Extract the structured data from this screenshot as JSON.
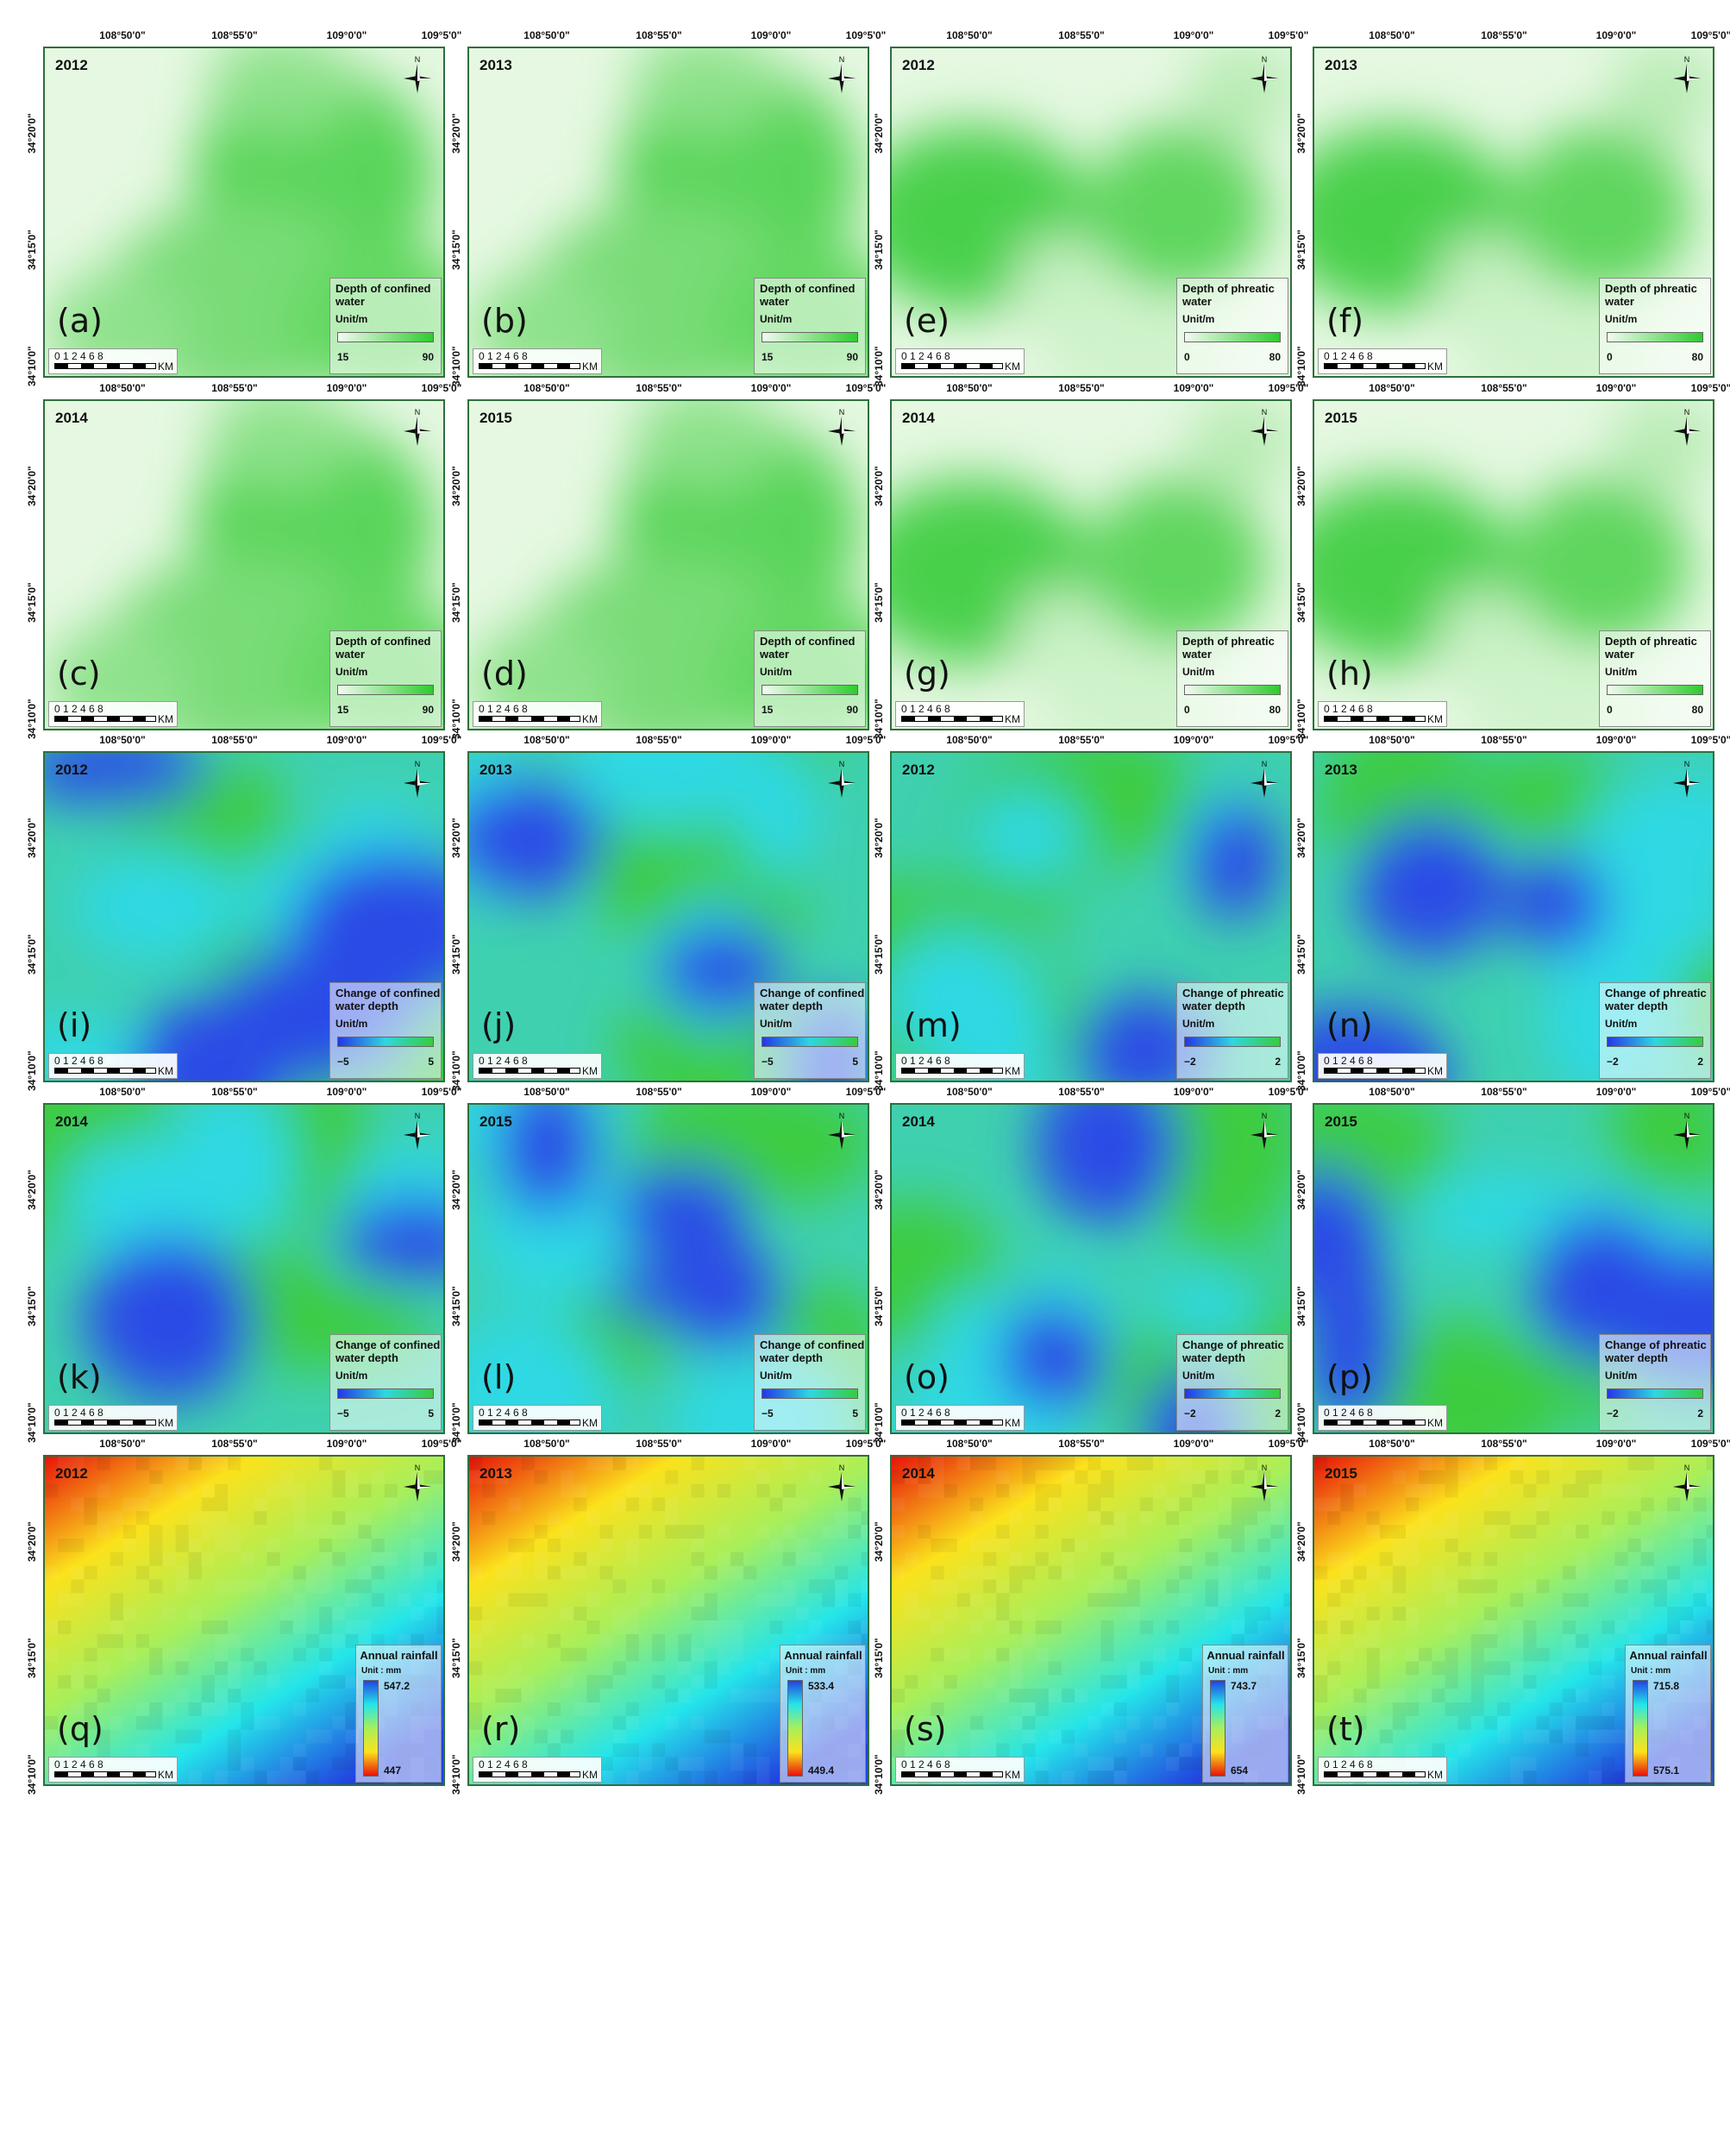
{
  "x_ticks": [
    "108°50'0\"",
    "108°55'0\"",
    "109°0'0\"",
    "109°5'0\""
  ],
  "y_ticks": [
    "34°20'0\"",
    "34°15'0\"",
    "34°10'0\""
  ],
  "scale": {
    "numbers": "0 1 2   4    6    8",
    "unit": "KM"
  },
  "north_label": "N",
  "colors": {
    "confined_ramp": [
      "#f2fbf0",
      "#2ecb2e"
    ],
    "change_ramp": [
      "#2437e6",
      "#30d6e0",
      "#38cc3e"
    ],
    "rainfall_ramp": [
      "#e8130a",
      "#fbe21c",
      "#a8ef5a",
      "#24e5ea",
      "#2144e0"
    ]
  },
  "panels": [
    {
      "label": "(a)",
      "year": "2012",
      "kind": "confined",
      "legend": {
        "title": "Depth of confined water",
        "unit": "Unit/m",
        "min": "15",
        "max": "90"
      }
    },
    {
      "label": "(b)",
      "year": "2013",
      "kind": "confined",
      "legend": {
        "title": "Depth of confined water",
        "unit": "Unit/m",
        "min": "15",
        "max": "90"
      }
    },
    {
      "label": "(e)",
      "year": "2012",
      "kind": "phreatic",
      "legend": {
        "title": "Depth of phreatic water",
        "unit": "Unit/m",
        "min": "0",
        "max": "80"
      }
    },
    {
      "label": "(f)",
      "year": "2013",
      "kind": "phreatic",
      "legend": {
        "title": "Depth of phreatic water",
        "unit": "Unit/m",
        "min": "0",
        "max": "80"
      }
    },
    {
      "label": "(c)",
      "year": "2014",
      "kind": "confined",
      "legend": {
        "title": "Depth of confined water",
        "unit": "Unit/m",
        "min": "15",
        "max": "90"
      }
    },
    {
      "label": "(d)",
      "year": "2015",
      "kind": "confined",
      "legend": {
        "title": "Depth of confined water",
        "unit": "Unit/m",
        "min": "15",
        "max": "90"
      }
    },
    {
      "label": "(g)",
      "year": "2014",
      "kind": "phreatic",
      "legend": {
        "title": "Depth of phreatic water",
        "unit": "Unit/m",
        "min": "0",
        "max": "80"
      }
    },
    {
      "label": "(h)",
      "year": "2015",
      "kind": "phreatic",
      "legend": {
        "title": "Depth of phreatic water",
        "unit": "Unit/m",
        "min": "0",
        "max": "80"
      }
    },
    {
      "label": "(i)",
      "year": "2012",
      "kind": "change",
      "legend": {
        "title": "Change of confined water depth",
        "unit": "Unit/m",
        "min": "−5",
        "max": "5"
      }
    },
    {
      "label": "(j)",
      "year": "2013",
      "kind": "change",
      "legend": {
        "title": "Change of confined water depth",
        "unit": "Unit/m",
        "min": "−5",
        "max": "5"
      }
    },
    {
      "label": "(m)",
      "year": "2012",
      "kind": "change",
      "legend": {
        "title": "Change of phreatic water depth",
        "unit": "Unit/m",
        "min": "−2",
        "max": "2"
      }
    },
    {
      "label": "(n)",
      "year": "2013",
      "kind": "change",
      "legend": {
        "title": "Change of phreatic water depth",
        "unit": "Unit/m",
        "min": "−2",
        "max": "2"
      }
    },
    {
      "label": "(k)",
      "year": "2014",
      "kind": "change",
      "legend": {
        "title": "Change of confined water depth",
        "unit": "Unit/m",
        "min": "−5",
        "max": "5"
      }
    },
    {
      "label": "(l)",
      "year": "2015",
      "kind": "change",
      "legend": {
        "title": "Change of confined water depth",
        "unit": "Unit/m",
        "min": "−5",
        "max": "5"
      }
    },
    {
      "label": "(o)",
      "year": "2014",
      "kind": "change",
      "legend": {
        "title": "Change of phreatic water depth",
        "unit": "Unit/m",
        "min": "−2",
        "max": "2"
      }
    },
    {
      "label": "(p)",
      "year": "2015",
      "kind": "change",
      "legend": {
        "title": "Change of phreatic water depth",
        "unit": "Unit/m",
        "min": "−2",
        "max": "2"
      }
    },
    {
      "label": "(q)",
      "year": "2012",
      "kind": "rainfall",
      "legend": {
        "title": "Annual rainfall",
        "unit": "Unit : mm",
        "min": "447",
        "max": "547.2"
      }
    },
    {
      "label": "(r)",
      "year": "2013",
      "kind": "rainfall",
      "legend": {
        "title": "Annual rainfall",
        "unit": "Unit : mm",
        "min": "449.4",
        "max": "533.4"
      }
    },
    {
      "label": "(s)",
      "year": "2014",
      "kind": "rainfall",
      "legend": {
        "title": "Annual rainfall",
        "unit": "Unit : mm",
        "min": "654",
        "max": "743.7"
      }
    },
    {
      "label": "(t)",
      "year": "2015",
      "kind": "rainfall",
      "legend": {
        "title": "Annual rainfall",
        "unit": "Unit : mm",
        "min": "575.1",
        "max": "715.8"
      }
    }
  ]
}
